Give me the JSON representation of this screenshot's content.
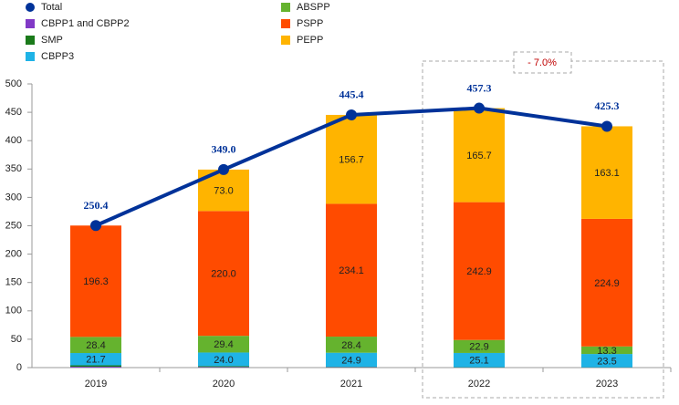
{
  "chart_data": {
    "type": "bar",
    "stacked": true,
    "categories": [
      "2019",
      "2020",
      "2021",
      "2022",
      "2023"
    ],
    "series": [
      {
        "name": "Total",
        "type": "line",
        "color": "#003299",
        "values": [
          250.4,
          349.0,
          445.4,
          457.3,
          425.3
        ],
        "value_labels": [
          "250.4",
          "349.0",
          "445.4",
          "457.3",
          "425.3"
        ]
      },
      {
        "name": "CBPP1 and CBPP2",
        "color": "#8139c6",
        "values": [
          1.5,
          1.0,
          0.6,
          0.3,
          0.2
        ]
      },
      {
        "name": "SMP",
        "color": "#1a7a1a",
        "values": [
          2.5,
          1.6,
          0.7,
          0.4,
          0.3
        ]
      },
      {
        "name": "CBPP3",
        "color": "#1fb3e6",
        "values": [
          21.7,
          24.0,
          24.9,
          25.1,
          23.5
        ],
        "value_labels": [
          "21.7",
          "24.0",
          "24.9",
          "25.1",
          "23.5"
        ]
      },
      {
        "name": "ABSPP",
        "color": "#65b32e",
        "values": [
          28.4,
          29.4,
          28.4,
          22.9,
          13.3
        ],
        "value_labels": [
          "28.4",
          "29.4",
          "28.4",
          "22.9",
          "13.3"
        ]
      },
      {
        "name": "PSPP",
        "color": "#ff4b00",
        "values": [
          196.3,
          220.0,
          234.1,
          242.9,
          224.9
        ],
        "value_labels": [
          "196.3",
          "220.0",
          "234.1",
          "242.9",
          "224.9"
        ]
      },
      {
        "name": "PEPP",
        "color": "#ffb400",
        "values": [
          0,
          73.0,
          156.7,
          165.7,
          163.1
        ],
        "value_labels": [
          null,
          "73.0",
          "156.7",
          "165.7",
          "163.1"
        ]
      }
    ],
    "annotation": "- 7.0%",
    "ylim": [
      0,
      500
    ],
    "yticks": [
      0,
      50,
      100,
      150,
      200,
      250,
      300,
      350,
      400,
      450,
      500
    ],
    "grid": false
  }
}
